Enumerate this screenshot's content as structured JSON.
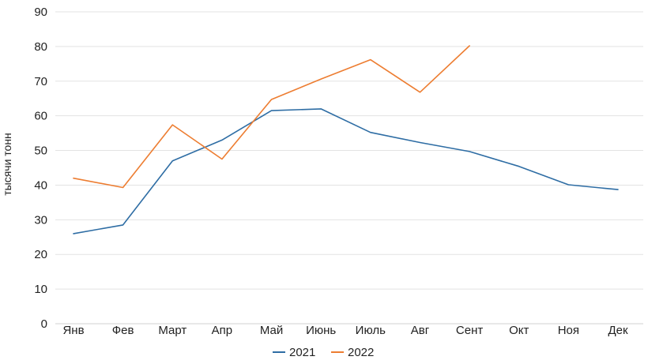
{
  "chart_data": {
    "type": "line",
    "categories": [
      "Янв",
      "Фев",
      "Март",
      "Апр",
      "Май",
      "Июнь",
      "Июль",
      "Авг",
      "Сент",
      "Окт",
      "Ноя",
      "Дек"
    ],
    "series": [
      {
        "name": "2021",
        "color": "#2e6da4",
        "values": [
          26,
          28.5,
          47,
          53,
          61.5,
          62,
          55.2,
          52.3,
          49.7,
          45.4,
          40.1,
          38.7
        ]
      },
      {
        "name": "2022",
        "color": "#ed7d31",
        "values": [
          42,
          39.3,
          57.4,
          47.5,
          64.7,
          70.6,
          76.2,
          66.8,
          80.2,
          null,
          null,
          null
        ]
      }
    ],
    "ylabel": "тысячи тонн",
    "xlabel": "",
    "title": "",
    "ylim": [
      0,
      90
    ],
    "yticks": [
      0,
      10,
      20,
      30,
      40,
      50,
      60,
      70,
      80,
      90
    ],
    "grid": true,
    "legend_position": "bottom"
  }
}
